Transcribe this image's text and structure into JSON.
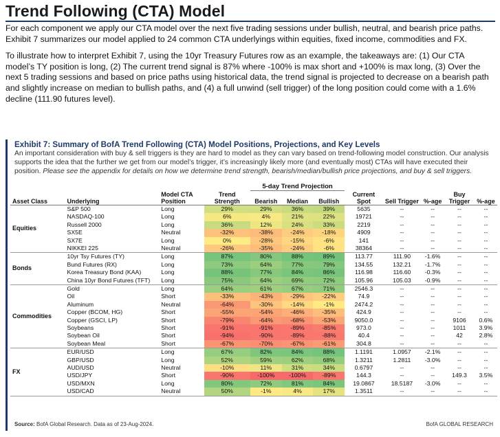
{
  "title": "Trend Following (CTA) Model",
  "intro": [
    "For each component we apply our CTA model over the next five trading sessions under bullish, neutral, and bearish price paths.  Exhibit 7 summarizes our model applied to 24 common CTA underlyings within equities, fixed income, commodities and FX.",
    "To illustrate how to interpret Exhibit 7, using the 10yr Treasury Futures row as an example, the takeaways are: (1) Our CTA model’s TY position is long, (2) The current trend signal is 87% where -100% is max short and +100% is max long, (3) Over the next 5 trading sessions and based on price paths using historical data, the trend signal is projected to decrease on a bearish path and slightly increase on median to bullish paths, and (4) a full unwind (sell trigger) of the long position could come with a 1.6% decline (111.90 futures level)."
  ],
  "exhibit": {
    "title": "Exhibit 7: Summary of BofA Trend Following (CTA) Model Positions, Projections, and Key Levels",
    "desc": "An important consideration with buy & sell triggers is they are hard to model as they can vary based on trend-following model construction.  Our analysis supports the idea that the further we get from our model’s trigger, it’s increasingly likely more (and eventually most) CTAs will have executed their position.",
    "desc_italic": "Please see the appendix for details on how we determine trend strength, bearish/median/bullish price projections, and buy & sell triggers."
  },
  "table": {
    "projection_header": "5-day Trend Projection",
    "headers": {
      "asset_class": "Asset Class",
      "underlying": "Underlying",
      "position": "Model CTA Position",
      "trend": "Trend Strength",
      "bearish": "Bearish",
      "median": "Median",
      "bullish": "Bullish",
      "spot": "Current Spot",
      "sell": "Sell Trigger",
      "sell_pct": "%-age",
      "buy": "Buy Trigger",
      "buy_pct": "%-age"
    },
    "groups": [
      {
        "asset_class": "Equities",
        "rows": [
          {
            "u": "S&P 500",
            "p": "Long",
            "t": "29%",
            "be": "29%",
            "me": "36%",
            "bu": "39%",
            "spot": "5635",
            "st": "--",
            "sp": "--",
            "bt": "--",
            "bp": "--"
          },
          {
            "u": "NASDAQ-100",
            "p": "Long",
            "t": "6%",
            "be": "4%",
            "me": "21%",
            "bu": "22%",
            "spot": "19721",
            "st": "--",
            "sp": "--",
            "bt": "--",
            "bp": "--"
          },
          {
            "u": "Russell 2000",
            "p": "Long",
            "t": "36%",
            "be": "12%",
            "me": "24%",
            "bu": "33%",
            "spot": "2219",
            "st": "--",
            "sp": "--",
            "bt": "--",
            "bp": "--"
          },
          {
            "u": "SX5E",
            "p": "Neutral",
            "t": "-32%",
            "be": "-38%",
            "me": "-24%",
            "bu": "-18%",
            "spot": "4909",
            "st": "--",
            "sp": "--",
            "bt": "--",
            "bp": "--"
          },
          {
            "u": "SX7E",
            "p": "Long",
            "t": "0%",
            "be": "-28%",
            "me": "-15%",
            "bu": "-6%",
            "spot": "141",
            "st": "--",
            "sp": "--",
            "bt": "--",
            "bp": "--"
          },
          {
            "u": "NIKKEI 225",
            "p": "Neutral",
            "t": "-26%",
            "be": "-35%",
            "me": "-24%",
            "bu": "-6%",
            "spot": "38364",
            "st": "--",
            "sp": "--",
            "bt": "--",
            "bp": "--"
          }
        ]
      },
      {
        "asset_class": "Bonds",
        "rows": [
          {
            "u": "10yr Tsy Futures (TY)",
            "p": "Long",
            "t": "87%",
            "be": "80%",
            "me": "88%",
            "bu": "89%",
            "spot": "113.77",
            "st": "111.90",
            "sp": "-1.6%",
            "bt": "--",
            "bp": "--"
          },
          {
            "u": "Bund Futures (RX)",
            "p": "Long",
            "t": "73%",
            "be": "64%",
            "me": "77%",
            "bu": "79%",
            "spot": "134.55",
            "st": "132.21",
            "sp": "-1.7%",
            "bt": "--",
            "bp": "--"
          },
          {
            "u": "Korea Treasury Bond (KAA)",
            "p": "Long",
            "t": "88%",
            "be": "77%",
            "me": "84%",
            "bu": "86%",
            "spot": "116.98",
            "st": "116.60",
            "sp": "-0.3%",
            "bt": "--",
            "bp": "--"
          },
          {
            "u": "China 10yr Bond Futures (TFT)",
            "p": "Long",
            "t": "75%",
            "be": "64%",
            "me": "69%",
            "bu": "72%",
            "spot": "105.96",
            "st": "105.03",
            "sp": "-0.9%",
            "bt": "--",
            "bp": "--"
          }
        ]
      },
      {
        "asset_class": "Commodities",
        "rows": [
          {
            "u": "Gold",
            "p": "Long",
            "t": "64%",
            "be": "61%",
            "me": "67%",
            "bu": "71%",
            "spot": "2546.3",
            "st": "--",
            "sp": "--",
            "bt": "--",
            "bp": "--"
          },
          {
            "u": "Oil",
            "p": "Short",
            "t": "-33%",
            "be": "-43%",
            "me": "-29%",
            "bu": "-22%",
            "spot": "74.9",
            "st": "--",
            "sp": "--",
            "bt": "--",
            "bp": "--"
          },
          {
            "u": "Aluminum",
            "p": "Neutral",
            "t": "-64%",
            "be": "-30%",
            "me": "-14%",
            "bu": "-1%",
            "spot": "2474.2",
            "st": "--",
            "sp": "--",
            "bt": "--",
            "bp": "--"
          },
          {
            "u": "Copper (BCOM, HG)",
            "p": "Short",
            "t": "-55%",
            "be": "-54%",
            "me": "-46%",
            "bu": "-35%",
            "spot": "424.9",
            "st": "--",
            "sp": "--",
            "bt": "--",
            "bp": "--"
          },
          {
            "u": "Copper (GSCI, LP)",
            "p": "Short",
            "t": "-79%",
            "be": "-64%",
            "me": "-68%",
            "bu": "-53%",
            "spot": "9050.0",
            "st": "--",
            "sp": "--",
            "bt": "9106",
            "bp": "0.6%"
          },
          {
            "u": "Soybeans",
            "p": "Short",
            "t": "-91%",
            "be": "-91%",
            "me": "-89%",
            "bu": "-85%",
            "spot": "973.0",
            "st": "--",
            "sp": "--",
            "bt": "1011",
            "bp": "3.9%"
          },
          {
            "u": "Soybean Oil",
            "p": "Short",
            "t": "-94%",
            "be": "-90%",
            "me": "-89%",
            "bu": "-88%",
            "spot": "40.4",
            "st": "--",
            "sp": "--",
            "bt": "42",
            "bp": "2.8%"
          },
          {
            "u": "Soybean Meal",
            "p": "Short",
            "t": "-67%",
            "be": "-70%",
            "me": "-67%",
            "bu": "-61%",
            "spot": "304.8",
            "st": "--",
            "sp": "--",
            "bt": "--",
            "bp": "--"
          }
        ]
      },
      {
        "asset_class": "FX",
        "rows": [
          {
            "u": "EUR/USD",
            "p": "Long",
            "t": "67%",
            "be": "82%",
            "me": "84%",
            "bu": "88%",
            "spot": "1.1191",
            "st": "1.0957",
            "sp": "-2.1%",
            "bt": "--",
            "bp": "--"
          },
          {
            "u": "GBP/USD",
            "p": "Long",
            "t": "52%",
            "be": "59%",
            "me": "62%",
            "bu": "68%",
            "spot": "1.3211",
            "st": "1.2811",
            "sp": "-3.0%",
            "bt": "--",
            "bp": "--"
          },
          {
            "u": "AUD/USD",
            "p": "Neutral",
            "t": "-10%",
            "be": "11%",
            "me": "31%",
            "bu": "34%",
            "spot": "0.6797",
            "st": "--",
            "sp": "--",
            "bt": "--",
            "bp": "--"
          },
          {
            "u": "USD/JPY",
            "p": "Short",
            "t": "-90%",
            "be": "-100%",
            "me": "-100%",
            "bu": "-89%",
            "spot": "144.3",
            "st": "--",
            "sp": "--",
            "bt": "149.3",
            "bp": "3.5%"
          },
          {
            "u": "USD/MXN",
            "p": "Long",
            "t": "80%",
            "be": "72%",
            "me": "81%",
            "bu": "84%",
            "spot": "19.0867",
            "st": "18.5187",
            "sp": "-3.0%",
            "bt": "--",
            "bp": "--"
          },
          {
            "u": "USD/CAD",
            "p": "Neutral",
            "t": "50%",
            "be": "-1%",
            "me": "4%",
            "bu": "17%",
            "spot": "1.3511",
            "st": "--",
            "sp": "--",
            "bt": "--",
            "bp": "--"
          }
        ]
      }
    ]
  },
  "colors": {
    "accent": "#1f3a68",
    "heat_strong_negative": "#f8696b",
    "heat_neutral": "#ffeb84",
    "heat_strong_positive": "#63be7b"
  },
  "footer": {
    "source_label": "Source:",
    "source_text": " BofA Global Research.  Data as of 23-Aug-2024.",
    "brand": "BofA GLOBAL RESEARCH"
  }
}
